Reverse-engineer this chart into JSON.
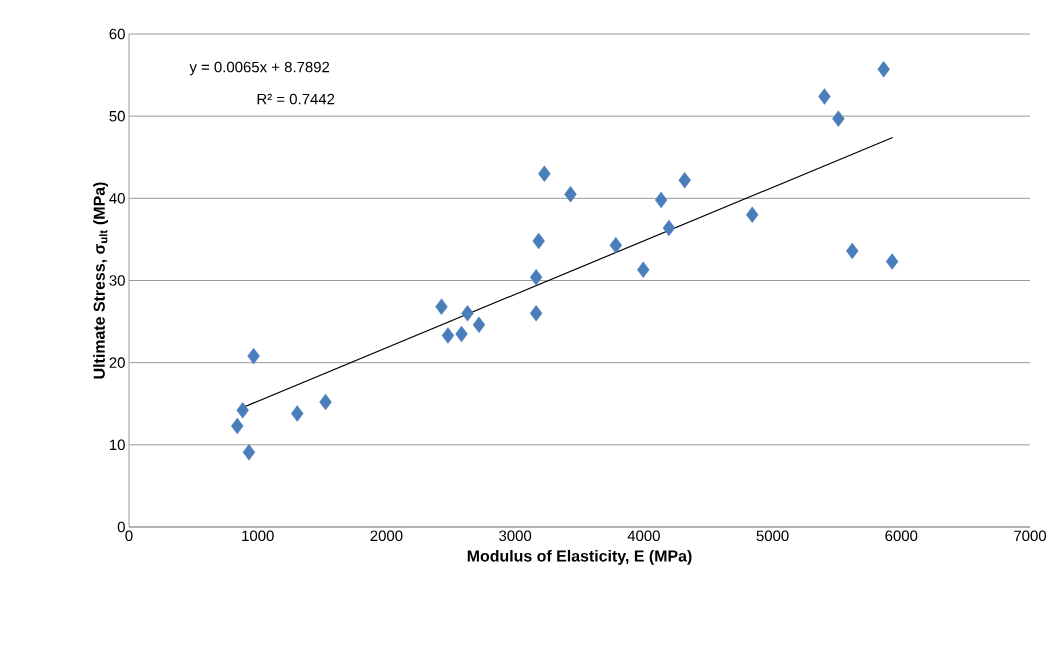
{
  "chart_data": {
    "type": "scatter",
    "xlabel": "Modulus of Elasticity, E (MPa)",
    "ylabel": "Ultimate Stress, σ$_{ult}$ (MPa)",
    "annotations": [
      "y = 0.0065x + 8.7892",
      "R² = 0.7442"
    ],
    "xlim": [
      0,
      7000
    ],
    "xticks": [
      0,
      1000,
      2000,
      3000,
      4000,
      5000,
      6000,
      7000
    ],
    "ylim": [
      0,
      60
    ],
    "yticks": [
      0,
      10,
      20,
      30,
      40,
      50,
      60
    ],
    "grid": "y",
    "marker": "diamond",
    "series": [
      {
        "color": "#4a7ebb",
        "x": [
          841,
          883,
          932,
          968,
          1307,
          1527,
          2428,
          2478,
          2583,
          2630,
          2719,
          3163,
          3163,
          3183,
          3227,
          3430,
          3782,
          3995,
          4134,
          4195,
          4317,
          4842,
          5403,
          5511,
          5619,
          5863,
          5929
        ],
        "values": [
          12.3,
          14.2,
          9.1,
          20.8,
          13.8,
          15.2,
          26.8,
          23.3,
          23.5,
          26.0,
          24.6,
          26.0,
          30.4,
          34.8,
          43.0,
          40.5,
          34.3,
          31.3,
          39.8,
          36.4,
          42.2,
          38.0,
          52.4,
          49.7,
          33.6,
          55.7,
          32.3
        ]
      },
      {
        "type": "line",
        "color": "#000000",
        "marker": "none",
        "x": [
          846,
          5933
        ],
        "values": [
          14.3,
          47.4
        ]
      }
    ]
  }
}
